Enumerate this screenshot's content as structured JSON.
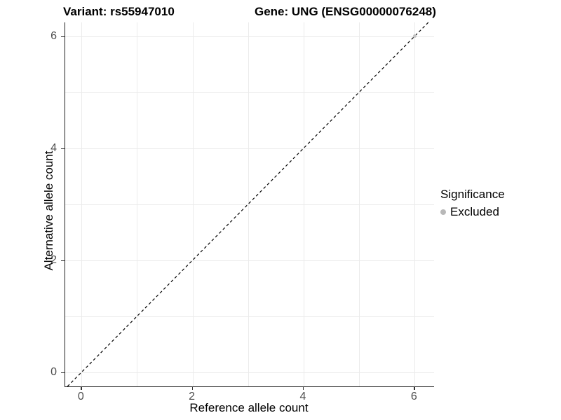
{
  "titles": {
    "variant": "Variant: rs55947010",
    "gene": "Gene: UNG (ENSG00000076248)"
  },
  "axes": {
    "x": {
      "label": "Reference allele count"
    },
    "y": {
      "label": "Alternative allele count"
    }
  },
  "legend": {
    "title": "Significance",
    "items": [
      {
        "label": "Excluded",
        "color": "#b8b8b8"
      }
    ]
  },
  "colors": {
    "grid": "#ebebeb",
    "axis_line": "#222222",
    "tick_text": "#4d4d4d",
    "point": "#c2c2c2",
    "reference_line": "#000000"
  },
  "chart_data": {
    "type": "scatter",
    "title": "Variant: rs55947010 — Gene: UNG (ENSG00000076248)",
    "xlabel": "Reference allele count",
    "ylabel": "Alternative allele count",
    "xlim": [
      -0.3,
      6.35
    ],
    "ylim": [
      -0.25,
      6.25
    ],
    "x_ticks": [
      0,
      2,
      4,
      6
    ],
    "y_ticks": [
      0,
      2,
      4,
      6
    ],
    "grid_values": [
      0,
      1,
      2,
      3,
      4,
      5,
      6
    ],
    "grid": true,
    "series": [
      {
        "name": "Excluded",
        "color": "#c2c2c2",
        "points": [
          {
            "x": 6,
            "y": 6
          }
        ]
      }
    ],
    "reference_line": {
      "type": "identity",
      "slope": 1,
      "intercept": 0,
      "style": "dashed",
      "color": "#000000"
    },
    "legend_title": "Significance",
    "legend_position": "right"
  }
}
